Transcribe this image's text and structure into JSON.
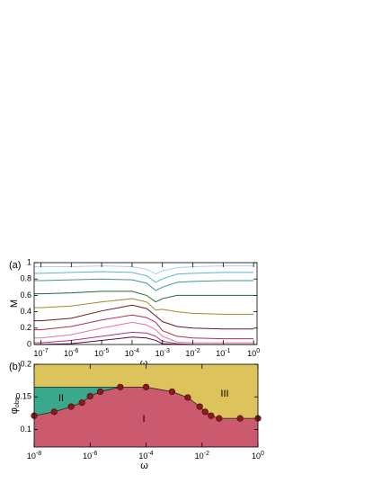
{
  "chart_data": [
    {
      "type": "line",
      "panel_label": "(a)",
      "xlabel": "ω",
      "ylabel": "M",
      "xscale": "log",
      "xlim": [
        6e-08,
        1.3
      ],
      "ylim": [
        0,
        1
      ],
      "xticks": [
        {
          "value": 1e-07,
          "label": "10-7"
        },
        {
          "value": 1e-06,
          "label": "10-6"
        },
        {
          "value": 1e-05,
          "label": "10-5"
        },
        {
          "value": 0.0001,
          "label": "10-4"
        },
        {
          "value": 0.001,
          "label": "10-3"
        },
        {
          "value": 0.01,
          "label": "10-2"
        },
        {
          "value": 0.1,
          "label": "10-1"
        },
        {
          "value": 1,
          "label": "100"
        }
      ],
      "yticks": [
        0,
        0.2,
        0.4,
        0.6,
        0.8,
        1
      ],
      "x": [
        6e-08,
        1e-07,
        1e-06,
        1e-05,
        0.0001,
        0.0003,
        0.0006,
        0.001,
        0.003,
        0.01,
        0.1,
        1
      ],
      "series": [
        {
          "color": "#a9d4ea",
          "values": [
            0.95,
            0.95,
            0.95,
            0.96,
            0.95,
            0.92,
            0.86,
            0.9,
            0.94,
            0.95,
            0.96,
            0.96
          ]
        },
        {
          "color": "#5ab4d6",
          "values": [
            0.87,
            0.87,
            0.88,
            0.89,
            0.88,
            0.84,
            0.76,
            0.8,
            0.86,
            0.87,
            0.88,
            0.88
          ]
        },
        {
          "color": "#3a9a8a",
          "values": [
            0.78,
            0.78,
            0.79,
            0.8,
            0.79,
            0.75,
            0.66,
            0.7,
            0.76,
            0.77,
            0.78,
            0.78
          ]
        },
        {
          "color": "#1f6b3a",
          "values": [
            0.62,
            0.62,
            0.63,
            0.65,
            0.65,
            0.6,
            0.52,
            0.56,
            0.6,
            0.6,
            0.6,
            0.6
          ]
        },
        {
          "color": "#a08a30",
          "values": [
            0.45,
            0.45,
            0.47,
            0.52,
            0.56,
            0.52,
            0.42,
            0.43,
            0.4,
            0.38,
            0.37,
            0.37
          ]
        },
        {
          "color": "#6b1a1a",
          "values": [
            0.29,
            0.29,
            0.32,
            0.41,
            0.48,
            0.44,
            0.35,
            0.28,
            0.22,
            0.2,
            0.19,
            0.19
          ]
        },
        {
          "color": "#b0304a",
          "values": [
            0.18,
            0.18,
            0.22,
            0.3,
            0.36,
            0.33,
            0.27,
            0.17,
            0.1,
            0.08,
            0.07,
            0.07
          ]
        },
        {
          "color": "#e07a9a",
          "values": [
            0.08,
            0.08,
            0.12,
            0.2,
            0.27,
            0.24,
            0.18,
            0.1,
            0.03,
            0.02,
            0.02,
            0.02
          ]
        },
        {
          "color": "#b03080",
          "values": [
            0.02,
            0.02,
            0.05,
            0.1,
            0.15,
            0.14,
            0.1,
            0.04,
            0.01,
            0,
            0,
            0
          ]
        },
        {
          "color": "#5a0a2a",
          "values": [
            0,
            0,
            0.01,
            0.05,
            0.09,
            0.08,
            0.05,
            0.01,
            0,
            0,
            0,
            0
          ]
        }
      ]
    },
    {
      "type": "phase",
      "panel_label": "(b)",
      "xlabel": "ω",
      "ylabel": "φ",
      "ylabel_sub": "obs",
      "xscale": "log",
      "xlim": [
        1e-08,
        1
      ],
      "ylim": [
        0.073,
        0.2
      ],
      "xticks": [
        {
          "value": 1e-08,
          "label": "10-8"
        },
        {
          "value": 1e-06,
          "label": "10-6"
        },
        {
          "value": 0.0001,
          "label": "10-4"
        },
        {
          "value": 0.01,
          "label": "10-2"
        },
        {
          "value": 1,
          "label": "100"
        }
      ],
      "yticks": [
        0.1,
        0.15,
        0.2
      ],
      "x": [
        1e-08,
        5.2e-08,
        2.1e-07,
        5.1e-07,
        1e-06,
        2.3e-06,
        1.2e-05,
        0.0001,
        0.00085,
        0.0031,
        0.0083,
        0.013,
        0.021,
        0.041,
        0.23,
        1
      ],
      "values": [
        0.121,
        0.127,
        0.135,
        0.141,
        0.151,
        0.158,
        0.165,
        0.165,
        0.158,
        0.149,
        0.135,
        0.127,
        0.121,
        0.117,
        0.117,
        0.117
      ],
      "color": "#8b1a1a",
      "boundary": 0.165,
      "regions": [
        {
          "label": "I",
          "color": "#cc5a6e"
        },
        {
          "label": "II",
          "color": "#3aa88a"
        },
        {
          "label": "III",
          "color": "#dcc35c"
        }
      ]
    }
  ]
}
